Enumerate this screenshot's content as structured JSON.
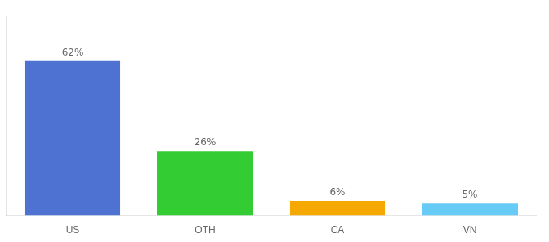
{
  "chart_data": {
    "type": "bar",
    "categories": [
      "US",
      "OTH",
      "CA",
      "VN"
    ],
    "values": [
      62,
      26,
      6,
      5
    ],
    "value_labels": [
      "62%",
      "26%",
      "6%",
      "5%"
    ],
    "colors": [
      "#4d72d1",
      "#33cc33",
      "#f5a800",
      "#66ccf5"
    ],
    "data_labels": true,
    "ylim": [
      0,
      80
    ],
    "grid": false,
    "tick_labels": "x"
  }
}
